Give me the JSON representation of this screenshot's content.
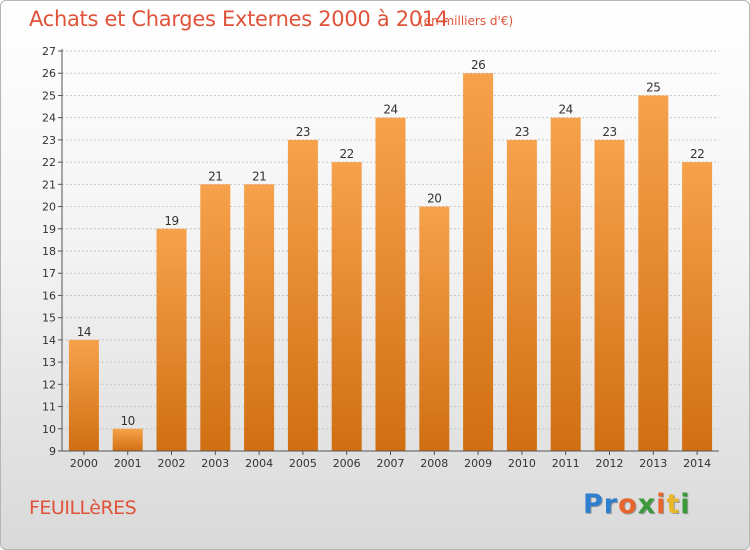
{
  "header": {
    "title": "Achats et Charges Externes 2000 à 2014",
    "unit": "(en milliers d'€)"
  },
  "footer": {
    "commune": "FEUILLèRES",
    "logo": "Proxiti",
    "logo_letters": [
      {
        "ch": "P",
        "color": "#2f7fd0"
      },
      {
        "ch": "r",
        "color": "#2f7fd0"
      },
      {
        "ch": "o",
        "color": "#e8662c"
      },
      {
        "ch": "x",
        "color": "#3a9a3a"
      },
      {
        "ch": "i",
        "color": "#e8662c"
      },
      {
        "ch": "t",
        "color": "#e8b82c"
      },
      {
        "ch": "i",
        "color": "#3a9a3a"
      }
    ]
  },
  "colors": {
    "bar_top": "#f6a24c",
    "bar_bottom": "#d06f12",
    "text_accent": "#e0533a",
    "grid": "#c8c8c8"
  },
  "chart_data": {
    "type": "bar",
    "title": "Achats et Charges Externes 2000 à 2014",
    "ylabel": "",
    "xlabel": "",
    "categories": [
      "2000",
      "2001",
      "2002",
      "2003",
      "2004",
      "2005",
      "2006",
      "2007",
      "2008",
      "2009",
      "2010",
      "2011",
      "2012",
      "2013",
      "2014"
    ],
    "values": [
      14,
      10,
      19,
      21,
      21,
      23,
      22,
      24,
      20,
      26,
      23,
      24,
      23,
      25,
      22
    ],
    "ylim": [
      9,
      27
    ],
    "yticks": [
      9,
      10,
      11,
      12,
      13,
      14,
      15,
      16,
      17,
      18,
      19,
      20,
      21,
      22,
      23,
      24,
      25,
      26,
      27
    ],
    "grid": true
  }
}
